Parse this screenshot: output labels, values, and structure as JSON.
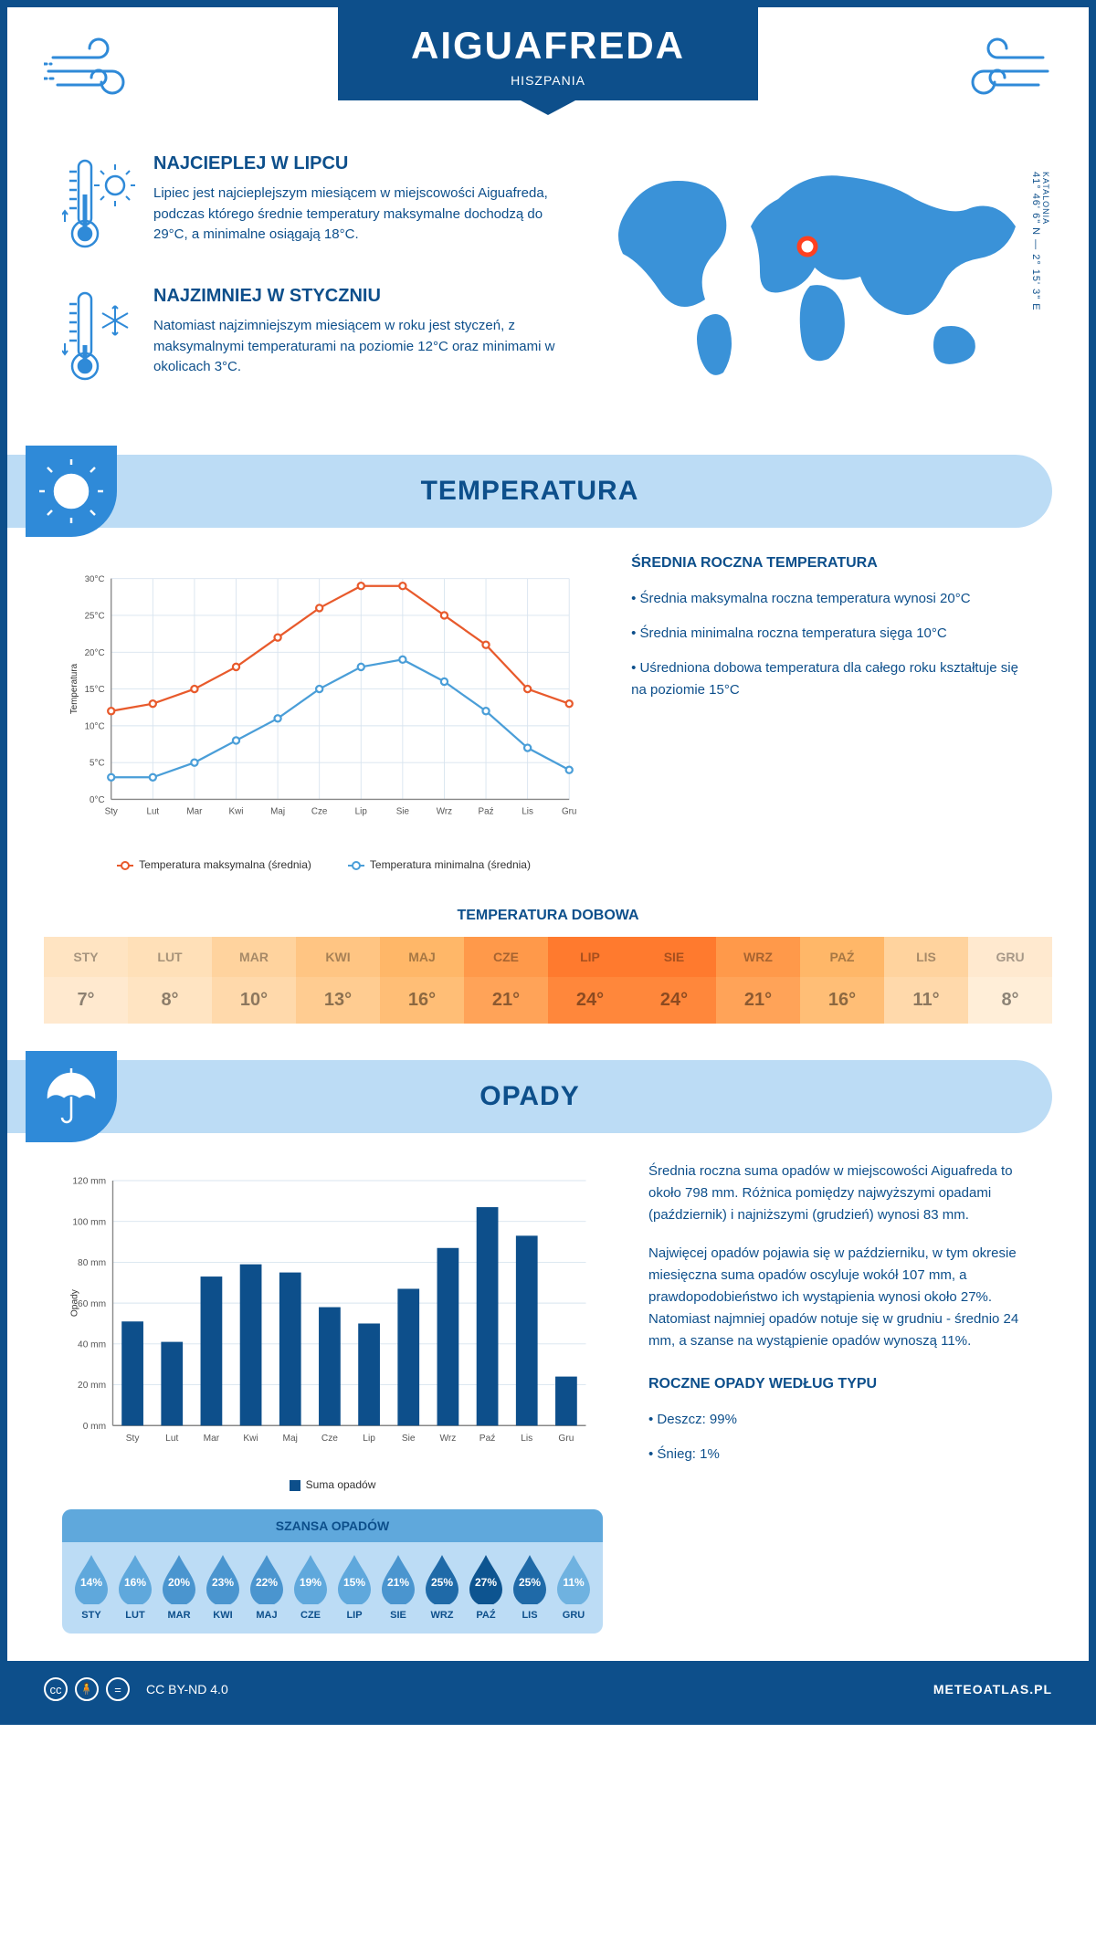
{
  "header": {
    "city": "AIGUAFREDA",
    "country": "HISZPANIA"
  },
  "coords": {
    "region": "KATALONIA",
    "text": "41° 46' 6\" N — 2° 15' 3\" E"
  },
  "facts": {
    "hot": {
      "title": "NAJCIEPLEJ W LIPCU",
      "body": "Lipiec jest najcieplejszym miesiącem w miejscowości Aiguafreda, podczas którego średnie temperatury maksymalne dochodzą do 29°C, a minimalne osiągają 18°C."
    },
    "cold": {
      "title": "NAJZIMNIEJ W STYCZNIU",
      "body": "Natomiast najzimniejszym miesiącem w roku jest styczeń, z maksymalnymi temperaturami na poziomie 12°C oraz minimami w okolicach 3°C."
    }
  },
  "months": [
    "Sty",
    "Lut",
    "Mar",
    "Kwi",
    "Maj",
    "Cze",
    "Lip",
    "Sie",
    "Wrz",
    "Paź",
    "Lis",
    "Gru"
  ],
  "months_upper": [
    "STY",
    "LUT",
    "MAR",
    "KWI",
    "MAJ",
    "CZE",
    "LIP",
    "SIE",
    "WRZ",
    "PAŹ",
    "LIS",
    "GRU"
  ],
  "temperature": {
    "heading": "TEMPERATURA",
    "chart": {
      "type": "line",
      "ylabel": "Temperatura",
      "ylim": [
        0,
        30
      ],
      "ytick_step": 5,
      "grid_color": "#d8e4ef",
      "series": [
        {
          "name": "Temperatura maksymalna (średnia)",
          "color": "#e85a2c",
          "values": [
            12,
            13,
            15,
            18,
            22,
            26,
            29,
            29,
            25,
            21,
            15,
            13
          ]
        },
        {
          "name": "Temperatura minimalna (średnia)",
          "color": "#4a9ed8",
          "values": [
            3,
            3,
            5,
            8,
            11,
            15,
            18,
            19,
            16,
            12,
            7,
            4
          ]
        }
      ]
    },
    "side": {
      "heading": "ŚREDNIA ROCZNA TEMPERATURA",
      "bullets": [
        "• Średnia maksymalna roczna temperatura wynosi 20°C",
        "• Średnia minimalna roczna temperatura sięga 10°C",
        "• Uśredniona dobowa temperatura dla całego roku kształtuje się na poziomie 15°C"
      ]
    },
    "daily": {
      "heading": "TEMPERATURA DOBOWA",
      "values": [
        7,
        8,
        10,
        13,
        16,
        21,
        24,
        24,
        21,
        16,
        11,
        8
      ],
      "top_colors": [
        "#ffe4c2",
        "#ffe0b8",
        "#ffd39e",
        "#ffc583",
        "#ffb768",
        "#ff994a",
        "#ff7a2e",
        "#ff7a2e",
        "#ff994a",
        "#ffb768",
        "#ffd39e",
        "#ffe9cf"
      ],
      "bot_colors": [
        "#ffe9cf",
        "#ffe4c2",
        "#ffd9ab",
        "#ffcc91",
        "#ffbe76",
        "#ffa358",
        "#ff873b",
        "#ff873b",
        "#ffa358",
        "#ffbe76",
        "#ffd9ab",
        "#ffeed8"
      ]
    }
  },
  "precipitation": {
    "heading": "OPADY",
    "chart": {
      "type": "bar",
      "ylabel": "Opady",
      "ylim": [
        0,
        120
      ],
      "ytick_step": 20,
      "bar_color": "#0d4f8b",
      "grid_color": "#d8e4ef",
      "values": [
        51,
        41,
        73,
        79,
        75,
        58,
        50,
        67,
        87,
        107,
        93,
        24
      ],
      "legend_label": "Suma opadów"
    },
    "side": {
      "p1": "Średnia roczna suma opadów w miejscowości Aiguafreda to około 798 mm. Różnica pomiędzy najwyższymi opadami (październik) i najniższymi (grudzień) wynosi 83 mm.",
      "p2": "Najwięcej opadów pojawia się w październiku, w tym okresie miesięczna suma opadów oscyluje wokół 107 mm, a prawdopodobieństwo ich wystąpienia wynosi około 27%. Natomiast najmniej opadów notuje się w grudniu - średnio 24 mm, a szanse na wystąpienie opadów wynoszą 11%.",
      "type_heading": "ROCZNE OPADY WEDŁUG TYPU",
      "type_bullets": [
        "• Deszcz: 99%",
        "• Śnieg: 1%"
      ]
    },
    "chance": {
      "heading": "SZANSA OPADÓW",
      "values": [
        14,
        16,
        20,
        23,
        22,
        19,
        15,
        21,
        25,
        27,
        25,
        11
      ],
      "colors": [
        "#5fa8dc",
        "#5fa8dc",
        "#4a95cf",
        "#4a95cf",
        "#4a95cf",
        "#5fa8dc",
        "#5fa8dc",
        "#4a95cf",
        "#1f6aa8",
        "#0d5490",
        "#1f6aa8",
        "#6fb2e0"
      ]
    }
  },
  "footer": {
    "license": "CC BY-ND 4.0",
    "brand": "METEOATLAS.PL"
  }
}
